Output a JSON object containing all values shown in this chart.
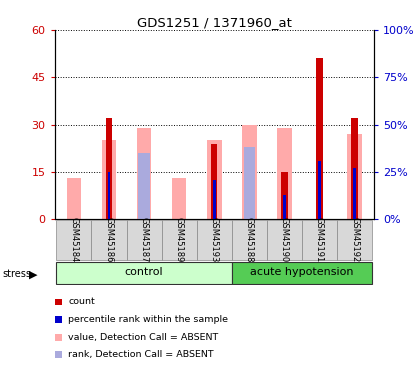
{
  "title": "GDS1251 / 1371960_at",
  "samples": [
    "GSM45184",
    "GSM45186",
    "GSM45187",
    "GSM45189",
    "GSM45193",
    "GSM45188",
    "GSM45190",
    "GSM45191",
    "GSM45192"
  ],
  "red_bars": [
    0,
    32,
    0,
    0,
    24,
    0,
    15,
    51,
    32
  ],
  "blue_bars": [
    0,
    25,
    0,
    0,
    21,
    0,
    13,
    31,
    27
  ],
  "pink_bars": [
    13,
    25,
    29,
    13,
    25,
    30,
    29,
    0,
    27
  ],
  "lilac_bars": [
    0,
    0,
    21,
    0,
    0,
    23,
    0,
    0,
    0
  ],
  "ylim_left": [
    0,
    60
  ],
  "ylim_right": [
    0,
    100
  ],
  "yticks_left": [
    0,
    15,
    30,
    45,
    60
  ],
  "yticks_right": [
    0,
    25,
    50,
    75,
    100
  ],
  "ytick_labels_left": [
    "0",
    "15",
    "30",
    "45",
    "60"
  ],
  "ytick_labels_right": [
    "0%",
    "25%",
    "50%",
    "75%",
    "100%"
  ],
  "red_color": "#cc0000",
  "blue_color": "#0000cc",
  "pink_color": "#ffaaaa",
  "lilac_color": "#aaaadd",
  "ctrl_color": "#ccffcc",
  "ah_color": "#55cc55",
  "legend_items": [
    {
      "color": "#cc0000",
      "label": "count"
    },
    {
      "color": "#0000cc",
      "label": "percentile rank within the sample"
    },
    {
      "color": "#ffaaaa",
      "label": "value, Detection Call = ABSENT"
    },
    {
      "color": "#aaaadd",
      "label": "rank, Detection Call = ABSENT"
    }
  ]
}
